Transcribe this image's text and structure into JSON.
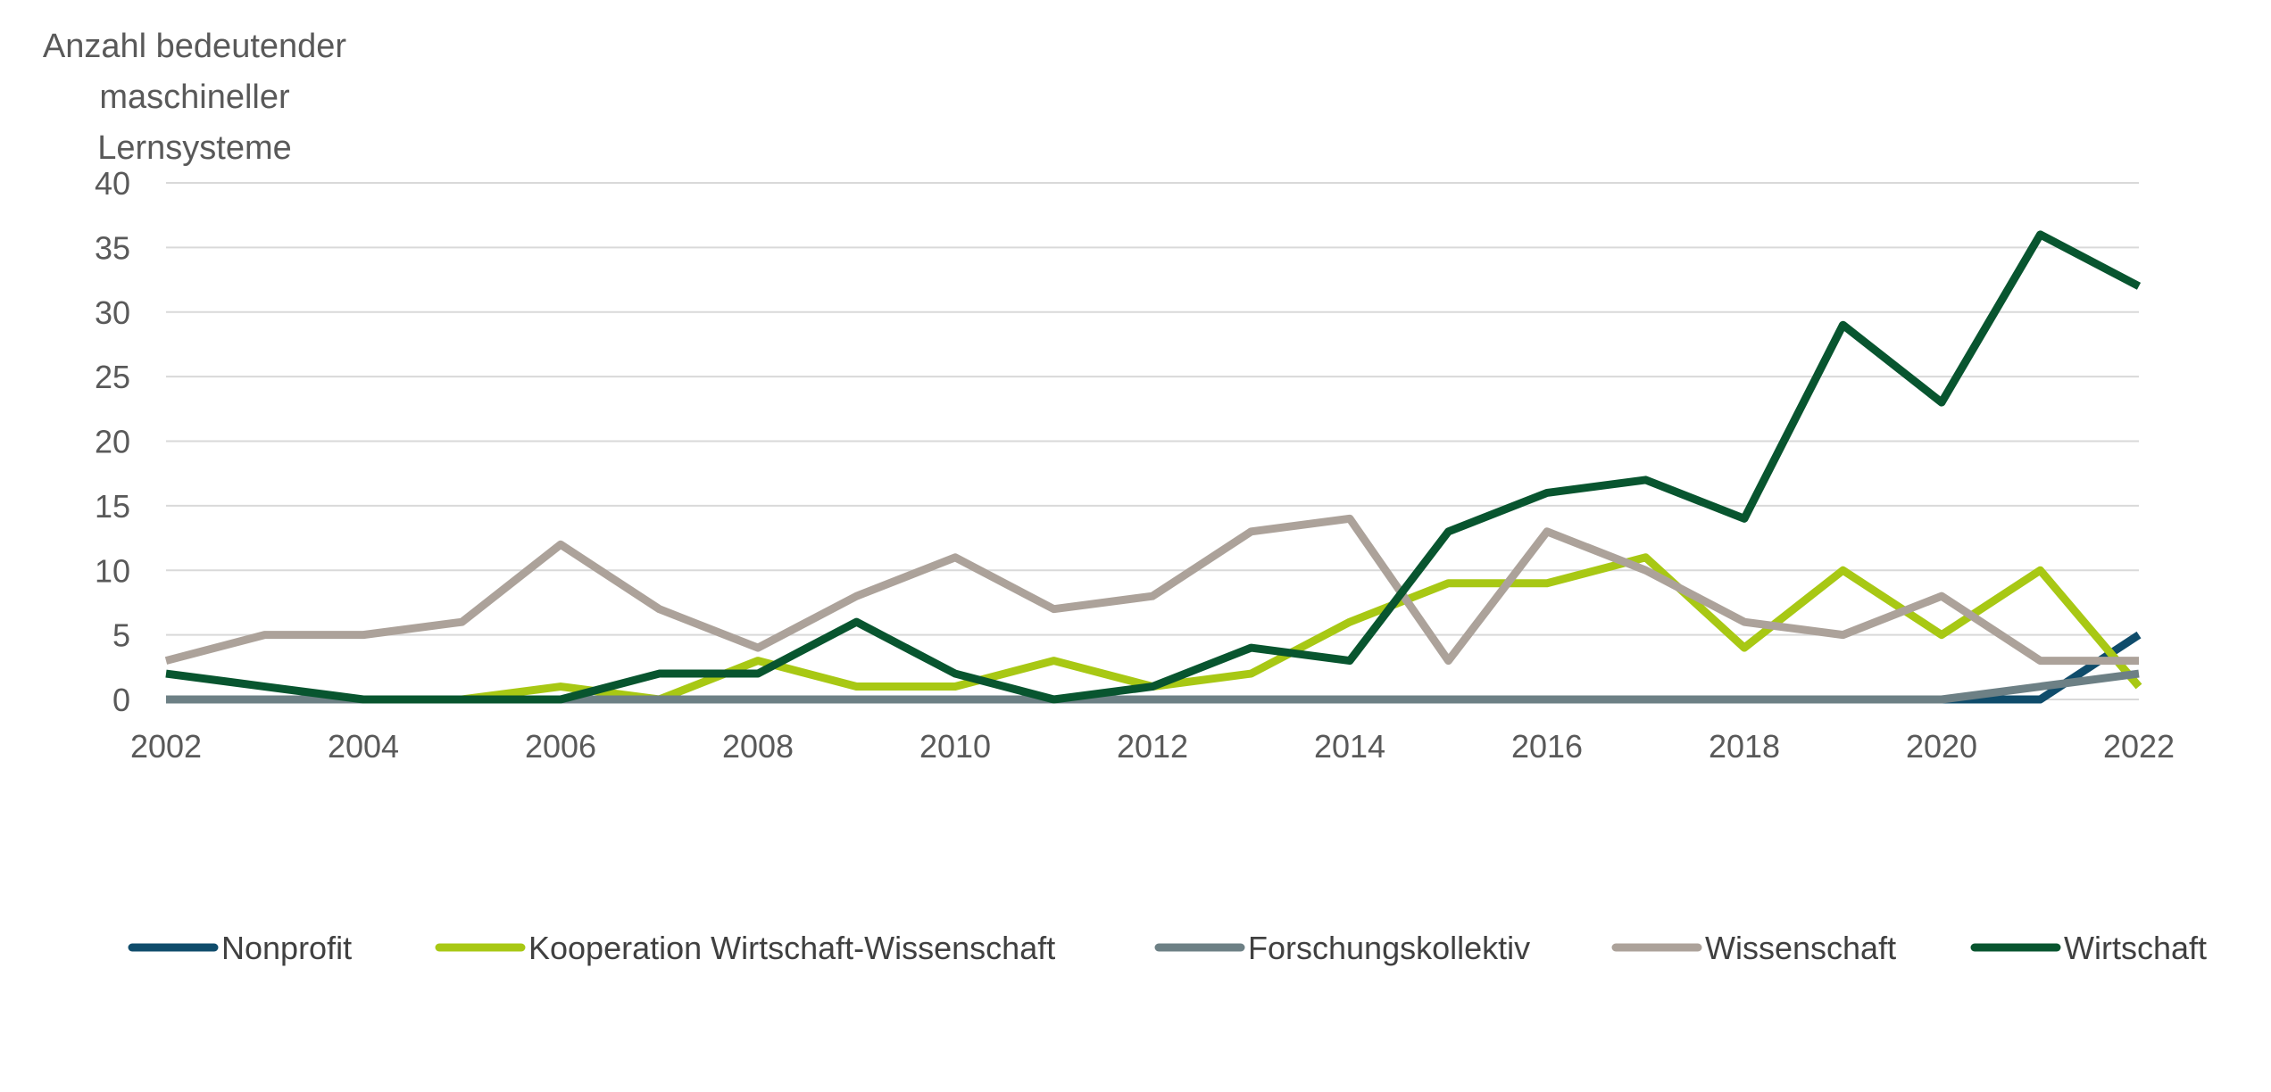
{
  "chart_data": {
    "type": "line",
    "ylabel": [
      "Anzahl bedeutender",
      "maschineller",
      "Lernsysteme"
    ],
    "xlabel": "",
    "ylim": [
      0,
      40
    ],
    "yticks": [
      "0",
      "5",
      "10",
      "15",
      "20",
      "25",
      "30",
      "35",
      "40"
    ],
    "xlim": [
      2002,
      2022
    ],
    "xticks": [
      "2002",
      "2004",
      "2006",
      "2008",
      "2010",
      "2012",
      "2014",
      "2016",
      "2018",
      "2020",
      "2022"
    ],
    "grid": true,
    "legend_position": "bottom",
    "x": [
      2002,
      2003,
      2004,
      2005,
      2006,
      2007,
      2008,
      2009,
      2010,
      2011,
      2012,
      2013,
      2014,
      2015,
      2016,
      2017,
      2018,
      2019,
      2020,
      2021,
      2022
    ],
    "series": [
      {
        "name": "Nonprofit",
        "color": "#0f4c6b",
        "values": [
          0,
          0,
          0,
          0,
          0,
          0,
          0,
          0,
          0,
          0,
          0,
          0,
          0,
          0,
          0,
          0,
          0,
          0,
          0,
          0,
          5
        ]
      },
      {
        "name": "Kooperation Wirtschaft-Wissenschaft",
        "color": "#a8c814",
        "values": [
          0,
          0,
          0,
          0,
          1,
          0,
          3,
          1,
          1,
          3,
          1,
          2,
          6,
          9,
          9,
          11,
          4,
          10,
          5,
          10,
          1
        ]
      },
      {
        "name": "Forschungskollektiv",
        "color": "#6d8085",
        "values": [
          0,
          0,
          0,
          0,
          0,
          0,
          0,
          0,
          0,
          0,
          0,
          0,
          0,
          0,
          0,
          0,
          0,
          0,
          0,
          1,
          2
        ]
      },
      {
        "name": "Wissenschaft",
        "color": "#aca29a",
        "values": [
          3,
          5,
          5,
          6,
          12,
          7,
          4,
          8,
          11,
          7,
          8,
          13,
          14,
          3,
          13,
          10,
          6,
          5,
          8,
          3,
          3
        ]
      },
      {
        "name": "Wirtschaft",
        "color": "#08552f",
        "values": [
          2,
          1,
          0,
          0,
          0,
          2,
          2,
          6,
          2,
          0,
          1,
          4,
          3,
          13,
          16,
          17,
          14,
          29,
          23,
          36,
          32
        ]
      }
    ]
  }
}
